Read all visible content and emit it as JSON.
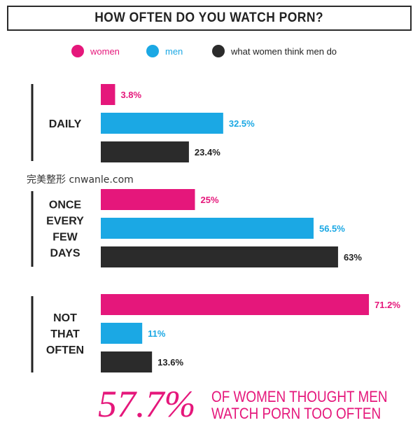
{
  "chart_data": {
    "type": "bar",
    "orientation": "horizontal",
    "title": "HOW OFTEN DO YOU WATCH PORN?",
    "categories": [
      [
        "DAILY"
      ],
      [
        "ONCE",
        "EVERY",
        "FEW",
        "DAYS"
      ],
      [
        "NOT",
        "THAT",
        "OFTEN"
      ]
    ],
    "series": [
      {
        "name": "women",
        "color": "#e5177b",
        "values": [
          3.8,
          25,
          71.2
        ],
        "labels": [
          "3.8%",
          "25%",
          "71.2%"
        ]
      },
      {
        "name": "men",
        "color": "#1ba8e4",
        "values": [
          32.5,
          56.5,
          11
        ],
        "labels": [
          "32.5%",
          "56.5%",
          "11%"
        ]
      },
      {
        "name": "what women think men do",
        "color": "#2b2b2b",
        "values": [
          23.4,
          63,
          13.6
        ],
        "labels": [
          "23.4%",
          "63%",
          "13.6%"
        ]
      }
    ],
    "legend": "top"
  },
  "watermark": "完美整形 cnwanle.com",
  "footer": {
    "big": "57.7%",
    "line1": "OF WOMEN THOUGHT MEN",
    "line2": "WATCH PORN TOO OFTEN"
  }
}
